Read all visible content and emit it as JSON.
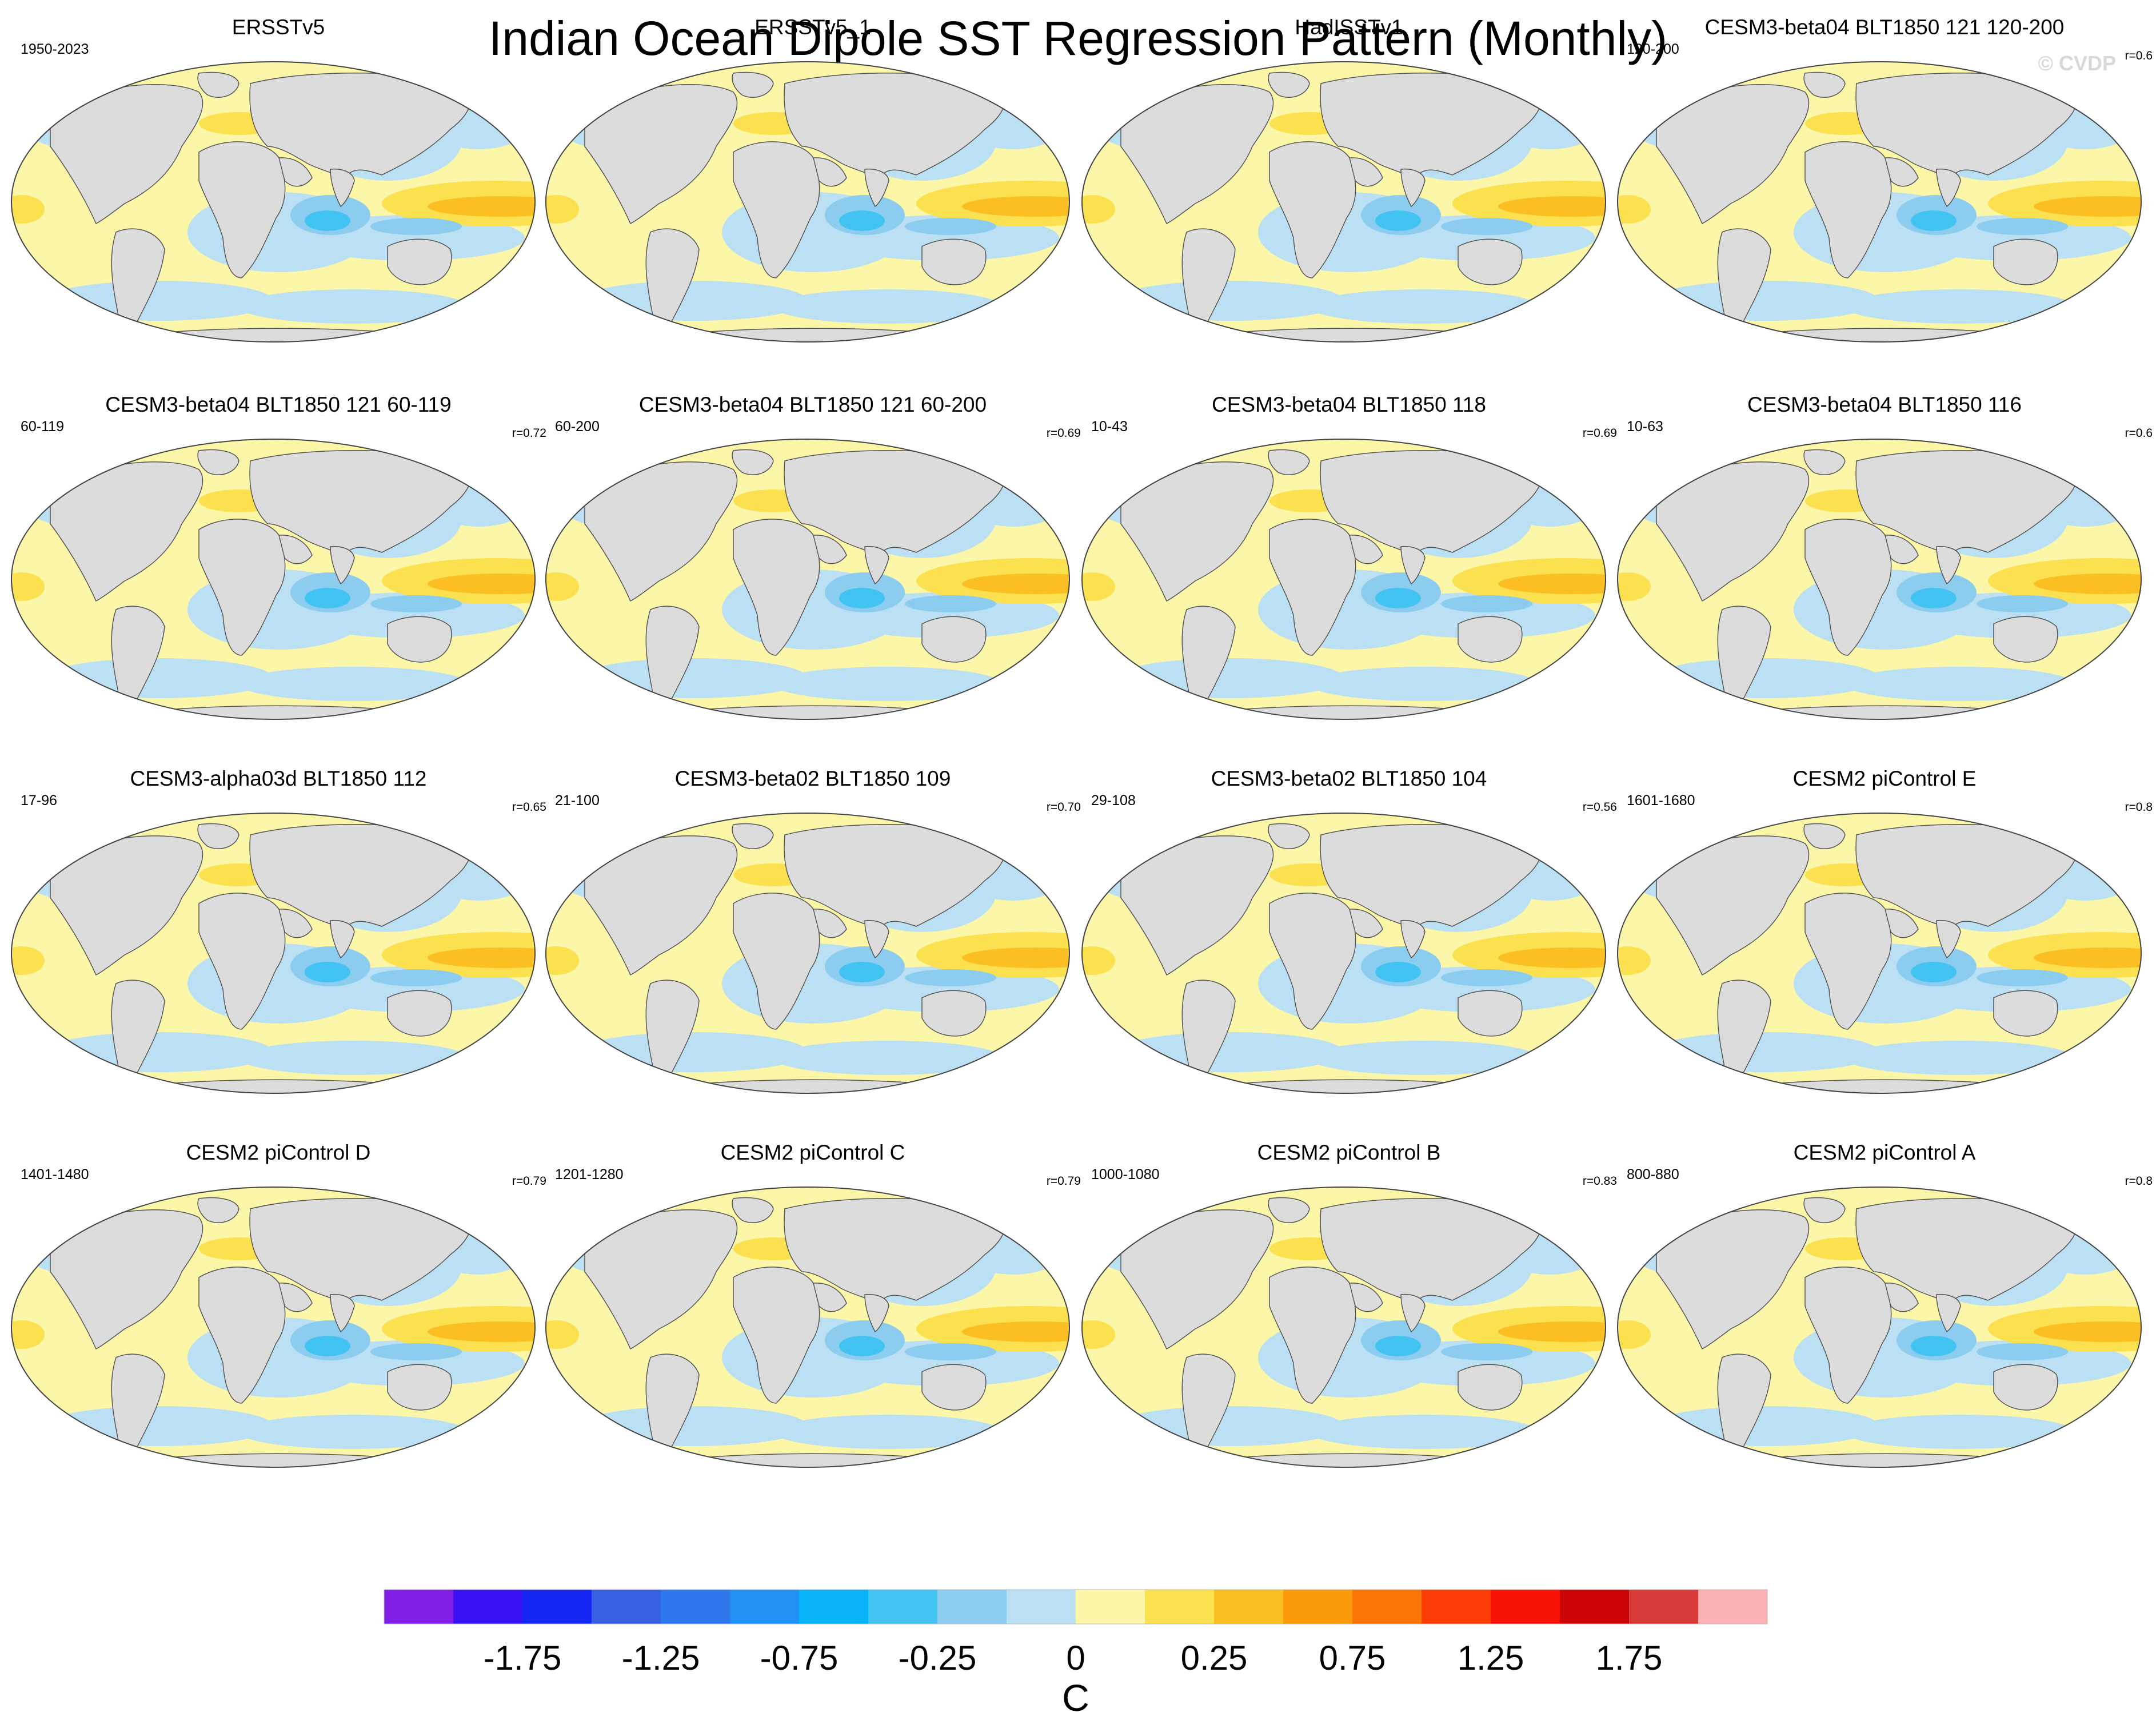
{
  "title": "Indian Ocean Dipole SST Regression Pattern (Monthly)",
  "watermark": "© CVDP",
  "panels": [
    {
      "title": "ERSSTv5",
      "period": "1950-2023",
      "r": ""
    },
    {
      "title": "ERSSTv5_1",
      "period": "",
      "r": ""
    },
    {
      "title": "HadISSTv1",
      "period": "",
      "r": ""
    },
    {
      "title": "CESM3-beta04 BLT1850 121 120-200",
      "period": "120-200",
      "r": "r=0.6"
    },
    {
      "title": "CESM3-beta04 BLT1850 121 60-119",
      "period": "60-119",
      "r": "r=0.72"
    },
    {
      "title": "CESM3-beta04 BLT1850 121 60-200",
      "period": "60-200",
      "r": "r=0.69"
    },
    {
      "title": "CESM3-beta04 BLT1850 118",
      "period": "10-43",
      "r": "r=0.69"
    },
    {
      "title": "CESM3-beta04 BLT1850 116",
      "period": "10-63",
      "r": "r=0.6"
    },
    {
      "title": "CESM3-alpha03d BLT1850 112",
      "period": "17-96",
      "r": "r=0.65"
    },
    {
      "title": "CESM3-beta02 BLT1850 109",
      "period": "21-100",
      "r": "r=0.70"
    },
    {
      "title": "CESM3-beta02 BLT1850 104",
      "period": "29-108",
      "r": "r=0.56"
    },
    {
      "title": "CESM2 piControl E",
      "period": "1601-1680",
      "r": "r=0.8"
    },
    {
      "title": "CESM2 piControl D",
      "period": "1401-1480",
      "r": "r=0.79"
    },
    {
      "title": "CESM2 piControl C",
      "period": "1201-1280",
      "r": "r=0.79"
    },
    {
      "title": "CESM2 piControl B",
      "period": "1000-1080",
      "r": "r=0.83"
    },
    {
      "title": "CESM2 piControl A",
      "period": "800-880",
      "r": "r=0.8"
    }
  ],
  "chart_data": {
    "type": "heatmap",
    "title": "Indian Ocean Dipole SST Regression Pattern (Monthly)",
    "projection": "robinson-like global map",
    "colorbar": {
      "unit": "C",
      "tick_labels": [
        "-1.75",
        "-1.25",
        "-0.75",
        "-0.25",
        "0",
        "0.25",
        "0.75",
        "1.25",
        "1.75"
      ],
      "tick_values": [
        -1.75,
        -1.25,
        -0.75,
        -0.25,
        0,
        0.25,
        0.75,
        1.25,
        1.75
      ],
      "colors": [
        "#7f1fe8",
        "#3a10f5",
        "#1525f2",
        "#385fe0",
        "#2f78ec",
        "#2191f5",
        "#08b3f7",
        "#43c3f2",
        "#8ccdef",
        "#bbe0f3",
        "#fbf6a8",
        "#fbe04f",
        "#fbbf23",
        "#fb9a0a",
        "#fb7405",
        "#fb3e05",
        "#f81105",
        "#cb0503",
        "#d93a3a",
        "#fbb2b4"
      ]
    },
    "pattern_notes": "positive (warm) anomalies in western Indian Ocean and central/eastern tropical Pacific; negative (cool) anomalies in eastern Indian Ocean / Maritime Continent"
  }
}
